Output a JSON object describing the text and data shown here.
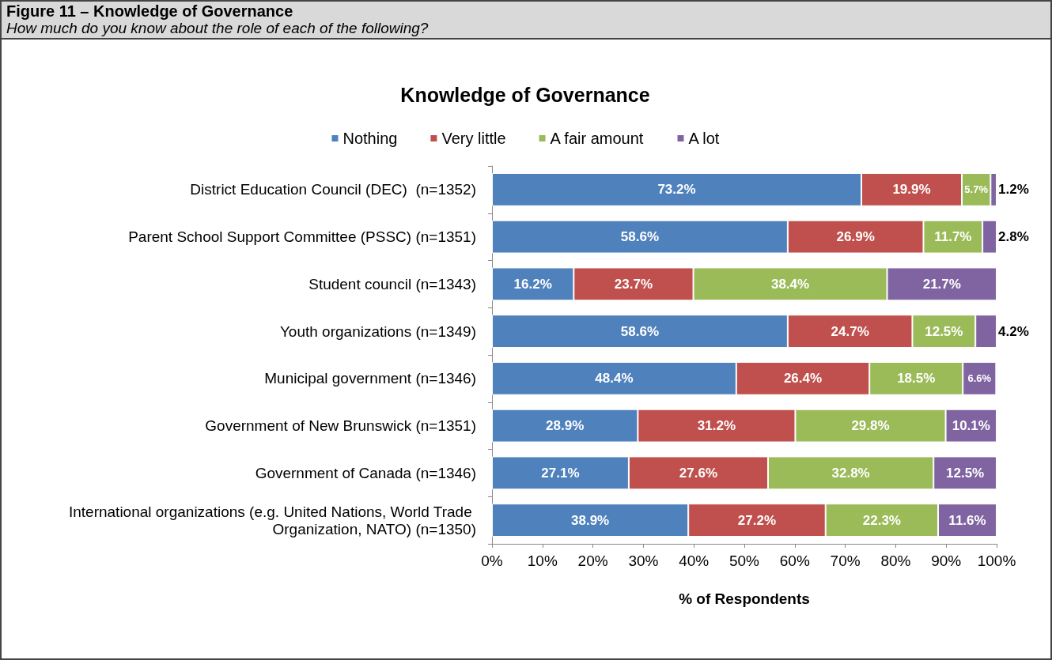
{
  "chart_data": {
    "type": "bar",
    "orientation": "horizontal",
    "stacked": true,
    "title": "Knowledge of Governance",
    "subtitle": "How much do you know about the role of each of the following?",
    "annotations": [
      "Figure 11 – Knowledge of Governance"
    ],
    "xlabel": "% of Respondents",
    "categories": [
      "District Education Council (DEC)  (n=1352)",
      "Parent School Support Committee (PSSC) (n=1351)",
      "Student council (n=1343)",
      "Youth organizations (n=1349)",
      "Municipal government (n=1346)",
      "Government of New Brunswick (n=1351)",
      "Government of Canada (n=1346)",
      "International organizations (e.g. United Nations, World Trade Organization, NATO) (n=1350)"
    ],
    "series": [
      {
        "name": "Nothing",
        "color": "#4f81bd",
        "values": [
          73.2,
          58.6,
          16.2,
          58.6,
          48.4,
          28.9,
          27.1,
          38.9
        ],
        "value_labels": [
          "73.2%",
          "58.6%",
          "16.2%",
          "58.6%",
          "48.4%",
          "28.9%",
          "27.1%",
          "38.9%"
        ]
      },
      {
        "name": "Very little",
        "color": "#c0504d",
        "values": [
          19.9,
          26.9,
          23.7,
          24.7,
          26.4,
          31.2,
          27.6,
          27.2
        ],
        "value_labels": [
          "19.9%",
          "26.9%",
          "23.7%",
          "24.7%",
          "26.4%",
          "31.2%",
          "27.6%",
          "27.2%"
        ]
      },
      {
        "name": "A fair amount",
        "color": "#9bbb59",
        "values": [
          5.7,
          11.7,
          38.4,
          12.5,
          18.5,
          29.8,
          32.8,
          22.3
        ],
        "value_labels": [
          "5.7%",
          "11.7%",
          "38.4%",
          "12.5%",
          "18.5%",
          "29.8%",
          "32.8%",
          "22.3%"
        ]
      },
      {
        "name": "A lot",
        "color": "#8064a2",
        "values": [
          1.2,
          2.8,
          21.7,
          4.2,
          6.6,
          10.1,
          12.5,
          11.6
        ],
        "value_labels": [
          "1.2%",
          "2.8%",
          "21.7%",
          "4.2%",
          "6.6%",
          "10.1%",
          "12.5%",
          "11.6%"
        ]
      }
    ],
    "xlim": [
      0,
      100
    ],
    "xticks": [
      {
        "value": 0,
        "label": "0%"
      },
      {
        "value": 10,
        "label": "10%"
      },
      {
        "value": 20,
        "label": "20%"
      },
      {
        "value": 30,
        "label": "30%"
      },
      {
        "value": 40,
        "label": "40%"
      },
      {
        "value": 50,
        "label": "50%"
      },
      {
        "value": 60,
        "label": "60%"
      },
      {
        "value": 70,
        "label": "70%"
      },
      {
        "value": 80,
        "label": "80%"
      },
      {
        "value": 90,
        "label": "90%"
      },
      {
        "value": 100,
        "label": "100%"
      }
    ],
    "grid": false,
    "legend": "top"
  }
}
